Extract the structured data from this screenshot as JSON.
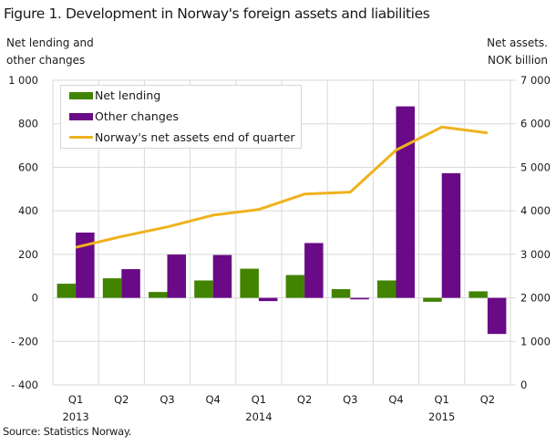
{
  "title": "Figure 1. Development in Norway's foreign assets and liabilities",
  "left_axis_title": [
    "Net lending and",
    "other changes"
  ],
  "right_axis_title": [
    "Net assets.",
    "NOK billion"
  ],
  "source": "Source: Statistics Norway.",
  "legend": [
    {
      "label": "Net lending",
      "type": "bar",
      "color": "#428300"
    },
    {
      "label": "Other changes",
      "type": "bar",
      "color": "#6a0a86"
    },
    {
      "label": "Norway's net assets end of quarter",
      "type": "line",
      "color": "#efb21e"
    }
  ],
  "chart_data": {
    "type": "bar",
    "title": "Figure 1. Development in Norway's foreign assets and liabilities",
    "categories": [
      "Q1 2013",
      "Q2 2013",
      "Q3 2013",
      "Q4 2013",
      "Q1 2014",
      "Q2 2014",
      "Q3 2014",
      "Q4 2014",
      "Q1 2015",
      "Q2 2015"
    ],
    "x_tick_labels": [
      {
        "line1": "Q1",
        "line2": "2013"
      },
      {
        "line1": "Q2",
        "line2": ""
      },
      {
        "line1": "Q3",
        "line2": ""
      },
      {
        "line1": "Q4",
        "line2": ""
      },
      {
        "line1": "Q1",
        "line2": "2014"
      },
      {
        "line1": "Q2",
        "line2": ""
      },
      {
        "line1": "Q3",
        "line2": ""
      },
      {
        "line1": "Q4",
        "line2": ""
      },
      {
        "line1": "Q1",
        "line2": "2015"
      },
      {
        "line1": "Q2",
        "line2": ""
      }
    ],
    "ylabel": "Net lending and other changes",
    "ylabel_right": "Net assets. NOK billion",
    "ylim": [
      -400,
      1000
    ],
    "ylim_right": [
      0,
      7000
    ],
    "yticks": [
      "1 000",
      "800",
      "600",
      "400",
      "200",
      "0",
      "- 200",
      "- 400"
    ],
    "yticks_right": [
      "7 000",
      "6 000",
      "5 000",
      "4 000",
      "3 000",
      "2 000",
      "1 000",
      "0"
    ],
    "grid": true,
    "legend_position": "upper-left inside",
    "series": [
      {
        "name": "Net lending",
        "type": "bar",
        "axis": "left",
        "color": "#428300",
        "values": [
          65,
          90,
          27,
          80,
          134,
          105,
          40,
          80,
          -18,
          30
        ]
      },
      {
        "name": "Other changes",
        "type": "bar",
        "axis": "left",
        "color": "#6a0a86",
        "values": [
          300,
          132,
          199,
          197,
          -15,
          252,
          -7,
          880,
          573,
          -166
        ]
      },
      {
        "name": "Norway's net assets end of quarter",
        "type": "line",
        "axis": "right",
        "color": "#efb21e",
        "values": [
          3160,
          3410,
          3630,
          3900,
          4030,
          4385,
          4430,
          5395,
          5925,
          5790
        ]
      }
    ]
  }
}
